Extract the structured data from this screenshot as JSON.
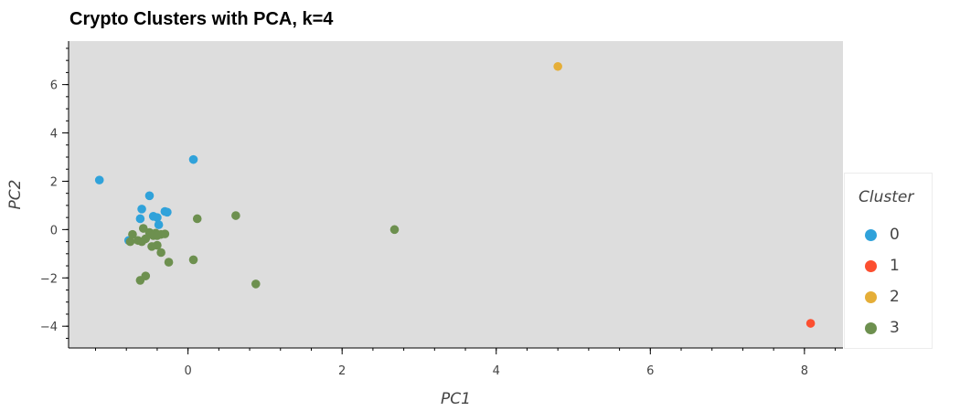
{
  "chart_data": {
    "type": "scatter",
    "title": "Crypto Clusters with PCA, k=4",
    "xlabel": "PC1",
    "ylabel": "PC2",
    "xlim": [
      -1.55,
      8.5
    ],
    "ylim": [
      -4.9,
      7.8
    ],
    "xticks": [
      0,
      2,
      4,
      6,
      8
    ],
    "xtick_labels": [
      "0",
      "2",
      "4",
      "6",
      "8"
    ],
    "yticks": [
      -4,
      -2,
      0,
      2,
      4,
      6
    ],
    "ytick_labels": [
      "−4",
      "−2",
      "0",
      "2",
      "4",
      "6"
    ],
    "grid": false,
    "legend_position": "right",
    "legend_title": "Cluster",
    "plot_background": "#dddddd",
    "series": [
      {
        "name": "0",
        "color": "#30a2da",
        "points": [
          [
            -1.15,
            2.05
          ],
          [
            0.07,
            2.9
          ],
          [
            -0.5,
            1.4
          ],
          [
            -0.6,
            0.85
          ],
          [
            -0.3,
            0.75
          ],
          [
            -0.45,
            0.55
          ],
          [
            -0.4,
            0.5
          ],
          [
            -0.62,
            0.45
          ],
          [
            -0.38,
            0.2
          ],
          [
            -0.77,
            -0.45
          ],
          [
            -0.27,
            0.72
          ]
        ]
      },
      {
        "name": "1",
        "color": "#fc4f30",
        "points": [
          [
            8.08,
            -3.88
          ]
        ]
      },
      {
        "name": "2",
        "color": "#e5ae38",
        "points": [
          [
            4.8,
            6.75
          ]
        ]
      },
      {
        "name": "3",
        "color": "#6d904f",
        "points": [
          [
            0.12,
            0.45
          ],
          [
            0.62,
            0.58
          ],
          [
            2.68,
            0.0
          ],
          [
            -0.58,
            0.05
          ],
          [
            -0.5,
            -0.12
          ],
          [
            -0.42,
            -0.15
          ],
          [
            -0.35,
            -0.2
          ],
          [
            -0.3,
            -0.18
          ],
          [
            -0.45,
            -0.25
          ],
          [
            -0.72,
            -0.2
          ],
          [
            -0.65,
            -0.45
          ],
          [
            -0.55,
            -0.38
          ],
          [
            -0.6,
            -0.5
          ],
          [
            -0.75,
            -0.5
          ],
          [
            -0.4,
            -0.65
          ],
          [
            -0.47,
            -0.7
          ],
          [
            -0.35,
            -0.95
          ],
          [
            -0.25,
            -1.35
          ],
          [
            0.07,
            -1.25
          ],
          [
            -0.55,
            -1.92
          ],
          [
            -0.62,
            -2.1
          ],
          [
            0.88,
            -2.25
          ],
          [
            -0.4,
            -0.25
          ]
        ]
      }
    ]
  }
}
